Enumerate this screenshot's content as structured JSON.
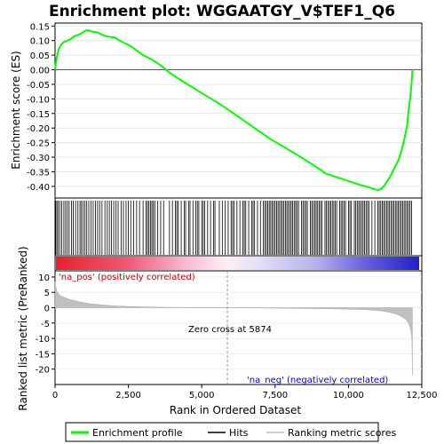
{
  "chart_data": [
    {
      "type": "line",
      "title": "Enrichment plot: WGGAATGY_V$TEF1_Q6",
      "ylabel": "Enrichment score (ES)",
      "xlim": [
        0,
        12500
      ],
      "ylim": [
        -0.44,
        0.16
      ],
      "yticks": [
        0.15,
        0.1,
        0.05,
        0.0,
        -0.05,
        -0.1,
        -0.15,
        -0.2,
        -0.25,
        -0.3,
        -0.35,
        -0.4
      ],
      "ytick_labels": [
        "0.15",
        "0.10",
        "0.05",
        "0.00",
        "-0.05",
        "-0.10",
        "-0.15",
        "-0.20",
        "-0.25",
        "-0.30",
        "-0.35",
        "-0.40"
      ],
      "grid": true,
      "series": [
        {
          "name": "Enrichment profile",
          "color": "#00ff00",
          "x": [
            0,
            50,
            120,
            200,
            300,
            420,
            520,
            650,
            800,
            950,
            1050,
            1150,
            1300,
            1450,
            1600,
            1750,
            1900,
            2050,
            2200,
            2400,
            2600,
            2800,
            3000,
            3300,
            3600,
            3900,
            4200,
            4600,
            5000,
            5500,
            5874,
            6300,
            6800,
            7300,
            7800,
            8300,
            8700,
            9000,
            9200,
            9500,
            9800,
            10100,
            10400,
            10700,
            10900,
            11000,
            11100,
            11200,
            11300,
            11400,
            11500,
            11600,
            11700,
            11800,
            11900,
            12000,
            12050,
            12100,
            12150,
            12180
          ],
          "y": [
            0.0,
            0.04,
            0.07,
            0.085,
            0.095,
            0.1,
            0.105,
            0.115,
            0.12,
            0.128,
            0.135,
            0.135,
            0.13,
            0.128,
            0.12,
            0.115,
            0.112,
            0.11,
            0.1,
            0.09,
            0.08,
            0.065,
            0.05,
            0.035,
            0.015,
            -0.01,
            -0.03,
            -0.055,
            -0.08,
            -0.11,
            -0.135,
            -0.165,
            -0.2,
            -0.235,
            -0.265,
            -0.295,
            -0.32,
            -0.34,
            -0.355,
            -0.365,
            -0.375,
            -0.385,
            -0.395,
            -0.403,
            -0.41,
            -0.413,
            -0.41,
            -0.4,
            -0.385,
            -0.37,
            -0.35,
            -0.33,
            -0.31,
            -0.28,
            -0.24,
            -0.19,
            -0.14,
            -0.1,
            -0.05,
            0.0
          ]
        }
      ]
    },
    {
      "type": "hits",
      "series": [
        {
          "name": "Hits",
          "color": "#000000",
          "x": [
            20,
            60,
            100,
            160,
            230,
            300,
            360,
            420,
            480,
            560,
            620,
            700,
            780,
            850,
            900,
            960,
            1020,
            1080,
            1150,
            1230,
            1300,
            1380,
            1450,
            1520,
            1600,
            1700,
            1780,
            1850,
            1920,
            2000,
            2080,
            2150,
            2250,
            2330,
            2420,
            2500,
            2580,
            2680,
            2780,
            2880,
            3000,
            3100,
            3150,
            3200,
            3250,
            3300,
            3350,
            3400,
            3500,
            3600,
            3700,
            3900,
            4000,
            4100,
            4150,
            4200,
            4300,
            4400,
            4450,
            4550,
            4600,
            4700,
            4800,
            4850,
            4900,
            5000,
            5050,
            5100,
            5200,
            5300,
            5400,
            5450,
            5600,
            5700,
            5800,
            5900,
            6000,
            6050,
            6100,
            6200,
            6300,
            6400,
            6450,
            6500,
            6600,
            6700,
            6750,
            6800,
            6900,
            7000,
            7100,
            7150,
            7200,
            7250,
            7300,
            7350,
            7400,
            7450,
            7500,
            7550,
            7600,
            7650,
            7700,
            7750,
            7800,
            7850,
            7900,
            7950,
            8000,
            8050,
            8100,
            8150,
            8200,
            8250,
            8300,
            8400,
            8450,
            8500,
            8550,
            8600,
            8700,
            8750,
            8800,
            8850,
            8900,
            8950,
            9000,
            9050,
            9100,
            9200,
            9250,
            9300,
            9350,
            9400,
            9450,
            9500,
            9550,
            9600,
            9700,
            9750,
            9800,
            9850,
            9900,
            10000,
            10050,
            10100,
            10200,
            10250,
            10300,
            10350,
            10400,
            10450,
            10500,
            10550,
            10600,
            10650,
            10700,
            10800,
            10900,
            11000,
            11050,
            11100,
            11150,
            11200,
            11250,
            11300,
            11350,
            11400,
            11450,
            11500,
            11550,
            11600,
            11650,
            11700,
            11750,
            11800,
            11850,
            11900,
            11950,
            12000,
            12050,
            12100,
            12150
          ]
        }
      ]
    },
    {
      "type": "area",
      "ylabel": "Ranked list metric (PreRanked)",
      "xlabel": "Rank in Ordered Dataset",
      "xlim": [
        0,
        12500
      ],
      "ylim": [
        -25,
        12
      ],
      "yticks": [
        10,
        5,
        0,
        -5,
        -10,
        -15,
        -20
      ],
      "ytick_labels": [
        "10",
        "5",
        "0",
        "-5",
        "-10",
        "-15",
        "-20"
      ],
      "xticks": [
        0,
        2500,
        5000,
        7500,
        10000,
        12500
      ],
      "xtick_labels": [
        "0",
        "2,500",
        "5,000",
        "7,500",
        "10,000",
        "12,500"
      ],
      "annotations": {
        "pos_label": "'na_pos' (positively correlated)",
        "neg_label": "'na_neg' (negatively correlated)",
        "zero_cross": "Zero cross at 5874",
        "zero_cross_x": 5874
      },
      "series": [
        {
          "name": "Ranking metric scores",
          "color": "#c0c0c0",
          "x": [
            0,
            20,
            60,
            120,
            200,
            350,
            500,
            800,
            1200,
            1600,
            2000,
            2500,
            3000,
            4000,
            5000,
            5874,
            7000,
            8000,
            9000,
            10000,
            10500,
            11000,
            11300,
            11600,
            11800,
            11950,
            12050,
            12120,
            12160,
            12180
          ],
          "y": [
            8.5,
            7.0,
            5.5,
            4.5,
            3.8,
            3.2,
            2.7,
            2.0,
            1.3,
            0.9,
            0.6,
            0.4,
            0.25,
            0.12,
            0.05,
            0.0,
            -0.1,
            -0.2,
            -0.3,
            -0.45,
            -0.6,
            -0.9,
            -1.3,
            -2.0,
            -2.8,
            -3.8,
            -5.0,
            -7.0,
            -10.0,
            -22.0
          ]
        }
      ]
    },
    {
      "type": "legend",
      "entries": [
        {
          "label": "Enrichment profile",
          "color": "#00ff00"
        },
        {
          "label": "Hits",
          "color": "#000000"
        },
        {
          "label": "Ranking metric scores",
          "color": "#c0c0c0"
        }
      ]
    }
  ]
}
